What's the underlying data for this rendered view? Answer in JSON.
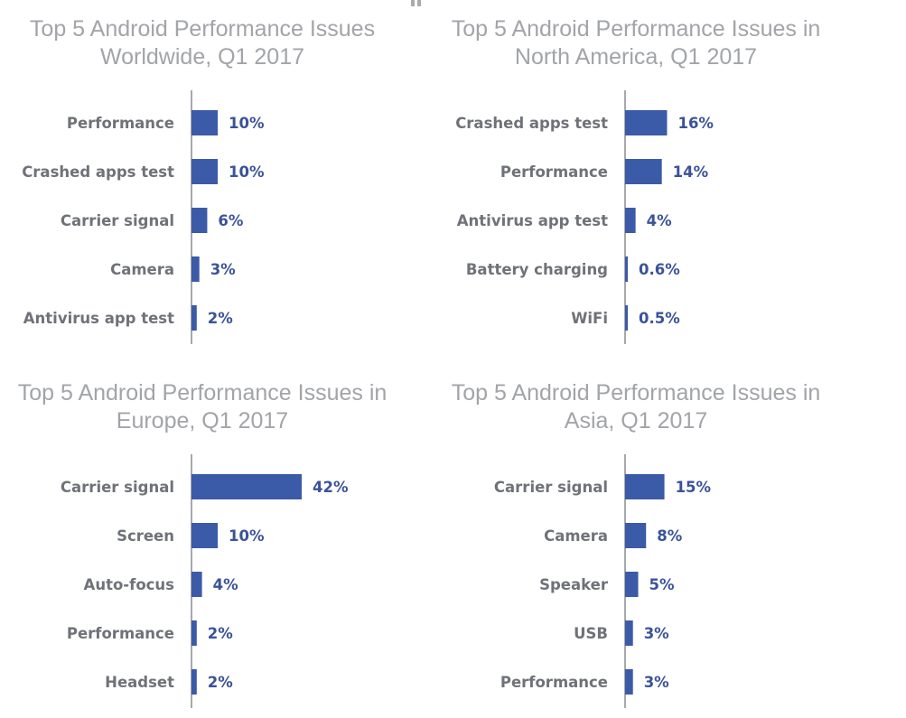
{
  "colors": {
    "bar": "#3b5aa7",
    "axis": "#777a80",
    "title": "#a2a4a8",
    "label": "#6f7278",
    "value": "#3a5399"
  },
  "chart_data": [
    {
      "type": "bar",
      "orientation": "horizontal",
      "title_lines": [
        "Top 5 Android Performance Issues",
        "Worldwide, Q1 2017"
      ],
      "categories": [
        "Performance",
        "Crashed apps test",
        "Carrier signal",
        "Camera",
        "Antivirus app test"
      ],
      "values": [
        10,
        10,
        6,
        3,
        2
      ],
      "value_labels": [
        "10%",
        "10%",
        "6%",
        "3%",
        "2%"
      ],
      "xlim": [
        0,
        42
      ]
    },
    {
      "type": "bar",
      "orientation": "horizontal",
      "title_lines": [
        "Top 5 Android Performance Issues in",
        "North America, Q1 2017"
      ],
      "categories": [
        "Crashed apps test",
        "Performance",
        "Antivirus app test",
        "Battery charging",
        "WiFi"
      ],
      "values": [
        16,
        14,
        4,
        0.6,
        0.5
      ],
      "value_labels": [
        "16%",
        "14%",
        "4%",
        "0.6%",
        "0.5%"
      ],
      "xlim": [
        0,
        42
      ]
    },
    {
      "type": "bar",
      "orientation": "horizontal",
      "title_lines": [
        "Top 5 Android Performance Issues in",
        "Europe, Q1 2017"
      ],
      "categories": [
        "Carrier signal",
        "Screen",
        "Auto-focus",
        "Performance",
        "Headset"
      ],
      "values": [
        42,
        10,
        4,
        2,
        2
      ],
      "value_labels": [
        "42%",
        "10%",
        "4%",
        "2%",
        "2%"
      ],
      "xlim": [
        0,
        42
      ]
    },
    {
      "type": "bar",
      "orientation": "horizontal",
      "title_lines": [
        "Top 5 Android Performance Issues in",
        "Asia, Q1 2017"
      ],
      "categories": [
        "Carrier signal",
        "Camera",
        "Speaker",
        "USB",
        "Performance"
      ],
      "values": [
        15,
        8,
        5,
        3,
        3
      ],
      "value_labels": [
        "15%",
        "8%",
        "5%",
        "3%",
        "3%"
      ],
      "xlim": [
        0,
        42
      ]
    }
  ]
}
